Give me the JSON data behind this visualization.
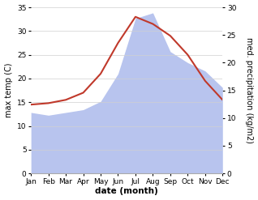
{
  "months": [
    "Jan",
    "Feb",
    "Mar",
    "Apr",
    "May",
    "Jun",
    "Jul",
    "Aug",
    "Sep",
    "Oct",
    "Nov",
    "Dec"
  ],
  "temp_max": [
    14.5,
    14.8,
    15.5,
    17.0,
    21.0,
    27.5,
    33.0,
    31.5,
    29.0,
    25.0,
    19.5,
    15.5
  ],
  "precip": [
    11.0,
    10.5,
    11.0,
    11.5,
    13.0,
    18.0,
    28.0,
    29.0,
    22.0,
    20.0,
    18.5,
    15.5
  ],
  "temp_color": "#c0392b",
  "precip_color": "#b8c4ee",
  "ylim_left": [
    0,
    35
  ],
  "ylim_right": [
    0,
    30
  ],
  "xlabel": "date (month)",
  "ylabel_left": "max temp (C)",
  "ylabel_right": "med. precipitation (kg/m2)",
  "bg_color": "#ffffff",
  "grid_color": "#d0d0d0",
  "temp_linewidth": 1.5,
  "tick_fontsize": 6.5,
  "ylabel_fontsize": 7,
  "xlabel_fontsize": 7.5
}
